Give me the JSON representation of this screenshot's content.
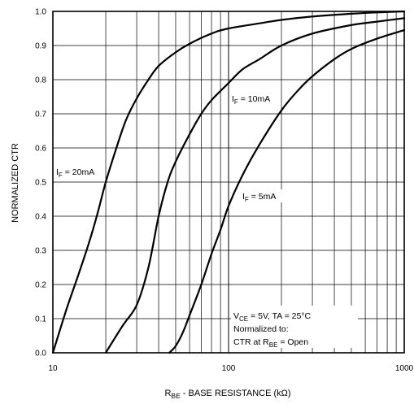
{
  "chart_data": {
    "type": "line",
    "xscale": "log",
    "xlim": [
      10,
      1000
    ],
    "ylim": [
      0.0,
      1.0
    ],
    "grid": true,
    "xlabel": {
      "main": "R",
      "sub": "BE",
      "rest": " - BASE RESISTANCE (kΩ)"
    },
    "ylabel": "NORMALIZED CTR",
    "xticks": [
      10,
      100,
      1000
    ],
    "xtick_labels": [
      "10",
      "100",
      "1000"
    ],
    "yticks": [
      0.0,
      0.1,
      0.2,
      0.3,
      0.4,
      0.5,
      0.6,
      0.7,
      0.8,
      0.9,
      1.0
    ],
    "ytick_labels": [
      "0.0",
      "0.1",
      "0.2",
      "0.3",
      "0.4",
      "0.5",
      "0.6",
      "0.7",
      "0.8",
      "0.9",
      "1.0"
    ],
    "series": [
      {
        "label": {
          "main": "I",
          "sub": "F",
          "rest": " = 20mA"
        },
        "x": [
          10,
          12,
          14,
          16,
          18,
          20,
          23,
          26,
          30,
          35,
          40,
          50,
          60,
          80,
          100,
          150,
          200,
          300,
          500,
          700,
          1000
        ],
        "y": [
          0.0,
          0.13,
          0.23,
          0.32,
          0.41,
          0.5,
          0.6,
          0.68,
          0.745,
          0.8,
          0.84,
          0.88,
          0.905,
          0.935,
          0.95,
          0.965,
          0.975,
          0.985,
          0.993,
          0.997,
          1.0
        ]
      },
      {
        "label": {
          "main": "I",
          "sub": "F",
          "rest": " = 10mA"
        },
        "x": [
          20,
          25,
          30,
          35,
          40,
          45,
          50,
          60,
          70,
          80,
          100,
          120,
          150,
          200,
          300,
          500,
          700,
          1000
        ],
        "y": [
          0.0,
          0.08,
          0.14,
          0.25,
          0.4,
          0.5,
          0.56,
          0.64,
          0.7,
          0.74,
          0.79,
          0.83,
          0.86,
          0.9,
          0.935,
          0.96,
          0.97,
          0.98
        ]
      },
      {
        "label": {
          "main": "I",
          "sub": "F",
          "rest": " = 5mA"
        },
        "x": [
          46,
          50,
          55,
          60,
          70,
          80,
          90,
          100,
          120,
          150,
          200,
          250,
          300,
          400,
          500,
          700,
          1000
        ],
        "y": [
          0.0,
          0.02,
          0.06,
          0.11,
          0.2,
          0.29,
          0.36,
          0.43,
          0.52,
          0.61,
          0.71,
          0.77,
          0.81,
          0.86,
          0.89,
          0.92,
          0.945
        ]
      }
    ],
    "annotation": {
      "line1": {
        "main": "V",
        "sub": "CE",
        "rest": " = 5V, TA = 25°C"
      },
      "line2": "Normalized to:",
      "line3": {
        "pre": "CTR at R",
        "sub": "BE",
        "rest": " = Open"
      }
    }
  }
}
